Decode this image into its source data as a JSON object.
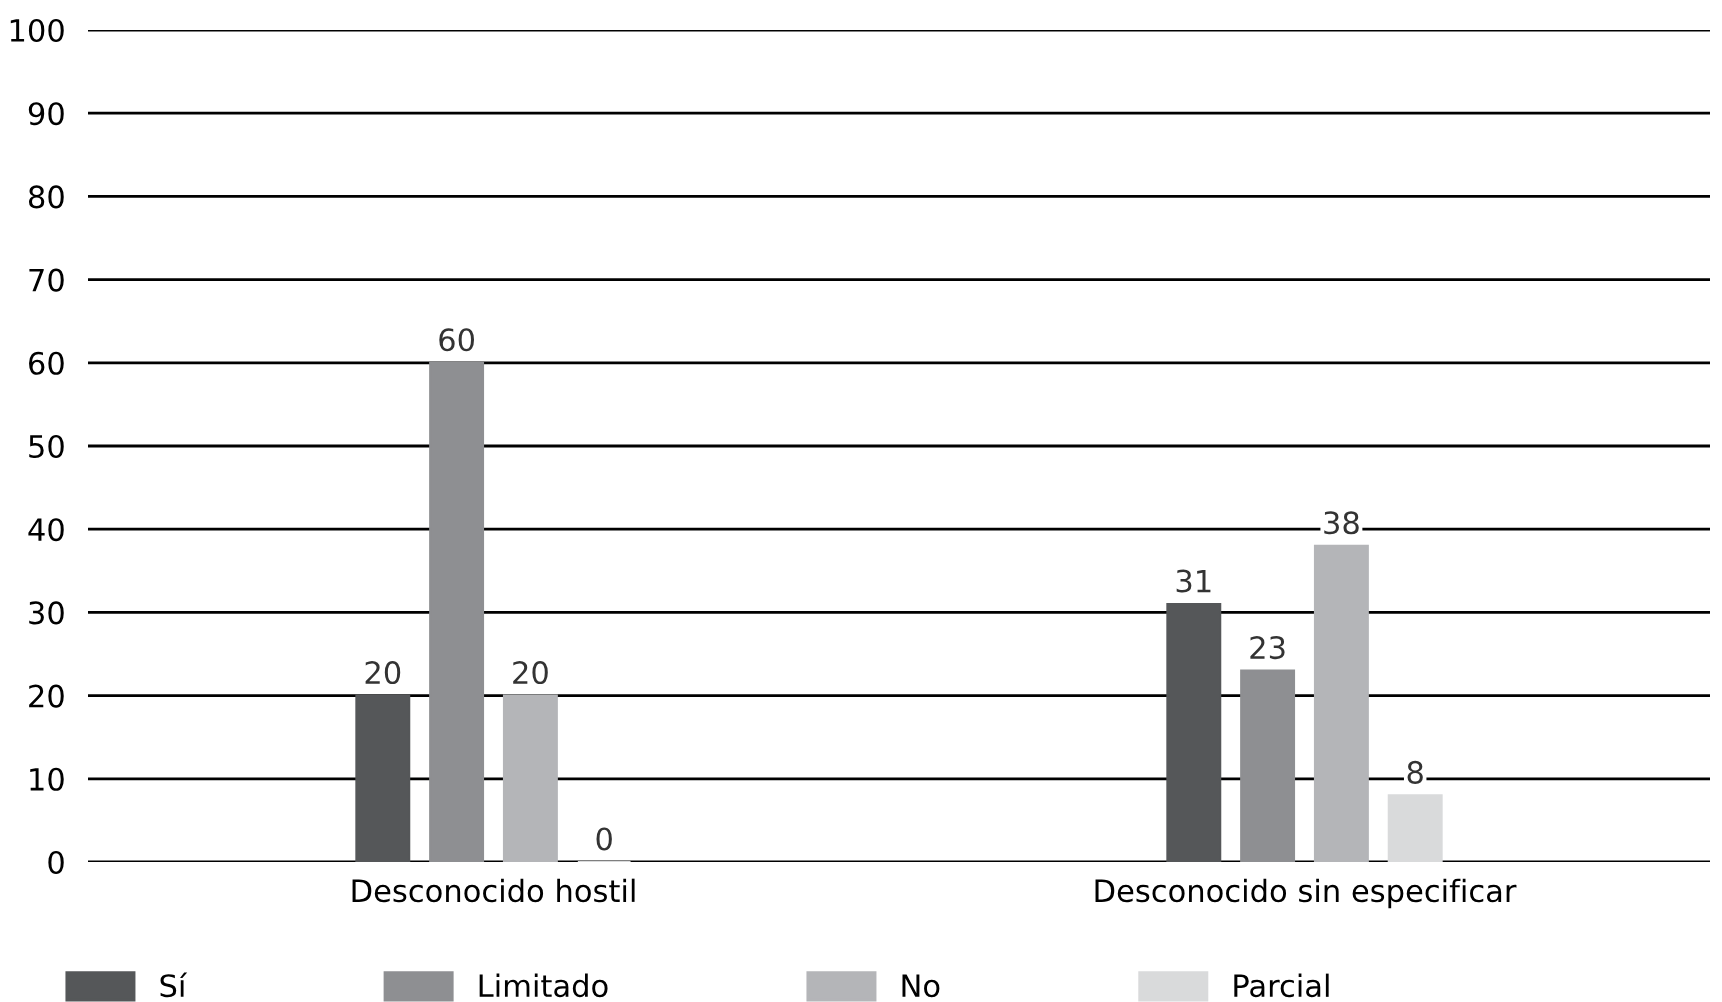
{
  "chart_data": {
    "type": "bar",
    "categories": [
      "Desconocido hostil",
      "Desconocido sin especificar"
    ],
    "series": [
      {
        "name": "Sí",
        "color": "#555759",
        "values": [
          20,
          31
        ]
      },
      {
        "name": "Limitado",
        "color": "#8e8f92",
        "values": [
          60,
          23
        ]
      },
      {
        "name": "No",
        "color": "#b4b5b8",
        "values": [
          20,
          38
        ]
      },
      {
        "name": "Parcial",
        "color": "#d9dadb",
        "values": [
          0,
          8
        ]
      }
    ],
    "ylim": [
      0,
      100
    ],
    "yticks": [
      0,
      10,
      20,
      30,
      40,
      50,
      60,
      70,
      80,
      90,
      100
    ],
    "grid": "y",
    "legend": "bottom",
    "data_labels": true
  }
}
